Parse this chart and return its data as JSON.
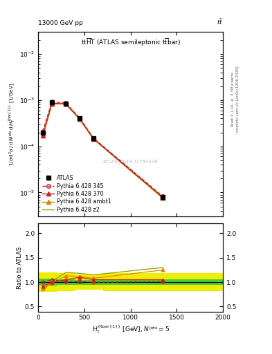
{
  "title_top_left": "13000 GeV pp",
  "title_top_right": "tt",
  "plot_title": "tt$\\overline{\\mathrm{H}}$T (ATLAS semileptonic t$\\overline{\\mathrm{t}}$bar)",
  "watermark": "ATLAS_2019_I1750330",
  "right_label1": "Rivet 3.1.10, ≥ 3.3M events",
  "right_label2": "mcplots.cern.ch [arXiv:1306.3436]",
  "xlabel": "$H_{\\mathrm{T}}^{\\{\\mathrm{tbar}\\{1\\}\\}}$ [GeV], $N^{\\mathrm{jets}} = 5$",
  "ylabel_main": "$1/\\sigma\\,\\mathrm{d}^2\\sigma / \\,\\mathrm{d}\\,N^{\\mathrm{jets}}\\,\\mathrm{d}\\,H_{\\mathrm{T}}^{\\{\\mathrm{bar}\\{1\\}\\}}$ [1/GeV]",
  "ylabel_ratio": "Ratio to ATLAS",
  "xlim": [
    0,
    2000
  ],
  "ylim_main": [
    3e-06,
    0.03
  ],
  "ylim_ratio": [
    0.4,
    2.2
  ],
  "x_data": [
    50,
    150,
    300,
    450,
    600,
    1350
  ],
  "atlas_y": [
    0.0002,
    0.0009,
    0.00085,
    0.0004,
    0.00015,
    8e-06
  ],
  "pythia345_y": [
    0.00021,
    0.00092,
    0.00086,
    0.00041,
    0.00015,
    8.2e-06
  ],
  "pythia370_y": [
    0.00017,
    0.00085,
    0.00083,
    0.00039,
    0.000145,
    7.8e-06
  ],
  "pythia_ambt1_y": [
    0.00017,
    0.00085,
    0.00083,
    0.00039,
    0.000145,
    7.8e-06
  ],
  "pythia_z2_y": [
    0.000165,
    0.00084,
    0.00082,
    0.000385,
    0.000142,
    7.5e-06
  ],
  "ratio_345": [
    1.0,
    1.05,
    1.01,
    1.02,
    1.0,
    1.01
  ],
  "ratio_370": [
    0.92,
    1.0,
    1.05,
    1.1,
    1.05,
    1.05
  ],
  "ratio_ambt1": [
    0.88,
    0.98,
    1.13,
    1.12,
    1.08,
    1.25
  ],
  "ratio_z2": [
    0.82,
    1.02,
    1.2,
    1.18,
    1.15,
    1.3
  ],
  "band_edges": [
    0,
    100,
    200,
    400,
    500,
    700,
    2000
  ],
  "err_band_green_low": [
    0.93,
    0.93,
    0.94,
    0.95,
    0.95,
    0.94
  ],
  "err_band_green_high": [
    1.07,
    1.07,
    1.06,
    1.05,
    1.05,
    1.06
  ],
  "err_band_yellow_low": [
    0.8,
    0.8,
    0.82,
    0.84,
    0.84,
    0.82
  ],
  "err_band_yellow_high": [
    1.2,
    1.2,
    1.18,
    1.16,
    1.16,
    1.18
  ],
  "color_atlas": "#000000",
  "color_345": "#cc2222",
  "color_370": "#cc2222",
  "color_ambt1": "#dd8800",
  "color_z2": "#999900",
  "color_green": "#44cc44",
  "color_yellow": "#eeee00",
  "bg_color": "#ffffff"
}
